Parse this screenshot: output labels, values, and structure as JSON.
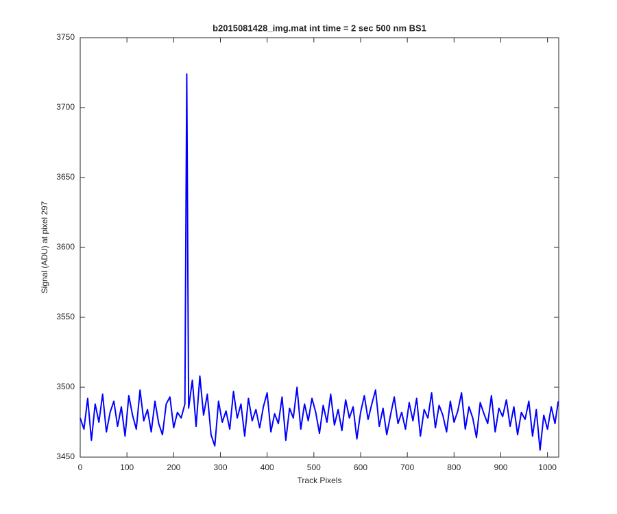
{
  "chart_data": {
    "type": "line",
    "title": "b2015081428_img.mat int time = 2 sec  500 nm BS1",
    "x_label": "Track Pixels",
    "y_label": "Signal (ADU) at pixel 297",
    "xlim": [
      0,
      1024
    ],
    "ylim": [
      3450,
      3750
    ],
    "xticks": [
      0,
      100,
      200,
      300,
      400,
      500,
      600,
      700,
      800,
      900,
      1000
    ],
    "yticks": [
      3450,
      3500,
      3550,
      3600,
      3650,
      3700,
      3750
    ],
    "grid": false,
    "series": [
      {
        "color": "#0000ff",
        "x": [
          0,
          8,
          16,
          24,
          32,
          40,
          48,
          56,
          64,
          72,
          80,
          88,
          96,
          104,
          112,
          120,
          128,
          136,
          144,
          152,
          160,
          168,
          176,
          184,
          192,
          200,
          208,
          216,
          224,
          228,
          232,
          240,
          248,
          256,
          264,
          272,
          280,
          288,
          296,
          304,
          312,
          320,
          328,
          336,
          344,
          352,
          360,
          368,
          376,
          384,
          392,
          400,
          408,
          416,
          424,
          432,
          440,
          448,
          456,
          464,
          472,
          480,
          488,
          496,
          504,
          512,
          520,
          528,
          536,
          544,
          552,
          560,
          568,
          576,
          584,
          592,
          600,
          608,
          616,
          624,
          632,
          640,
          648,
          656,
          664,
          672,
          680,
          688,
          696,
          704,
          712,
          720,
          728,
          736,
          744,
          752,
          760,
          768,
          776,
          784,
          792,
          800,
          808,
          816,
          824,
          832,
          840,
          848,
          856,
          864,
          872,
          880,
          888,
          896,
          904,
          912,
          920,
          928,
          936,
          944,
          952,
          960,
          968,
          976,
          984,
          992,
          1000,
          1008,
          1016,
          1023
        ],
        "values": [
          3478,
          3470,
          3492,
          3462,
          3488,
          3475,
          3495,
          3468,
          3482,
          3490,
          3472,
          3486,
          3465,
          3494,
          3480,
          3470,
          3498,
          3476,
          3484,
          3468,
          3490,
          3474,
          3466,
          3488,
          3493,
          3471,
          3482,
          3478,
          3488,
          3724,
          3485,
          3505,
          3472,
          3508,
          3480,
          3495,
          3466,
          3458,
          3490,
          3475,
          3483,
          3470,
          3497,
          3478,
          3488,
          3465,
          3492,
          3476,
          3484,
          3471,
          3486,
          3496,
          3468,
          3481,
          3474,
          3493,
          3462,
          3485,
          3478,
          3500,
          3470,
          3488,
          3476,
          3492,
          3482,
          3467,
          3487,
          3475,
          3495,
          3473,
          3484,
          3469,
          3491,
          3478,
          3486,
          3463,
          3482,
          3494,
          3477,
          3488,
          3498,
          3472,
          3485,
          3466,
          3480,
          3493,
          3474,
          3482,
          3470,
          3489,
          3476,
          3492,
          3465,
          3484,
          3478,
          3496,
          3471,
          3487,
          3480,
          3468,
          3490,
          3475,
          3483,
          3496,
          3470,
          3486,
          3478,
          3464,
          3489,
          3481,
          3474,
          3494,
          3468,
          3485,
          3479,
          3491,
          3472,
          3486,
          3466,
          3482,
          3477,
          3490,
          3465,
          3484,
          3455,
          3480,
          3470,
          3486,
          3474,
          3490
        ]
      }
    ]
  }
}
